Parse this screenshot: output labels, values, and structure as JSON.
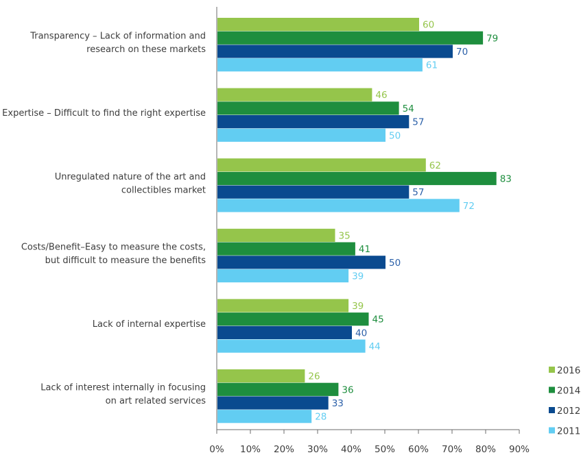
{
  "chart_data": {
    "type": "bar",
    "orientation": "horizontal",
    "categories": [
      [
        "Transparency – Lack of information and",
        "research on these markets"
      ],
      [
        "Expertise – Difficult to find the right expertise"
      ],
      [
        "Unregulated nature of the art and",
        "collectibles market"
      ],
      [
        "Costs/Benefit–Easy to measure the costs,",
        "but difficult to measure the benefits"
      ],
      [
        "Lack of internal expertise"
      ],
      [
        "Lack of interest internally in focusing",
        "on art related services"
      ]
    ],
    "series": [
      {
        "name": "2016",
        "color": "#95c54b",
        "values": [
          60,
          46,
          62,
          35,
          39,
          26
        ]
      },
      {
        "name": "2014",
        "color": "#1e8e3e",
        "values": [
          79,
          54,
          83,
          41,
          45,
          36
        ]
      },
      {
        "name": "2012",
        "color": "#0a4a8f",
        "values": [
          70,
          57,
          57,
          50,
          40,
          33
        ]
      },
      {
        "name": "2011",
        "color": "#62cdf2",
        "values": [
          61,
          50,
          72,
          39,
          44,
          28
        ]
      }
    ],
    "data_label_colors": {
      "2016": "#95c54b",
      "2014": "#1e8e3e",
      "2012": "#2a5fa8",
      "2011": "#62cdf2"
    },
    "xlim": [
      0,
      90
    ],
    "xticks": [
      "0%",
      "10%",
      "20%",
      "30%",
      "40%",
      "50%",
      "60%",
      "70%",
      "80%",
      "90%"
    ],
    "xlabel": "",
    "ylabel": "",
    "title": "",
    "grid": false,
    "legend_position": "bottom-right"
  }
}
